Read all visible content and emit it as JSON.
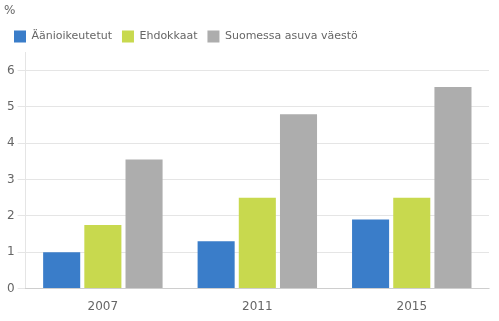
{
  "chart_data": {
    "type": "bar",
    "ylabel": "%",
    "categories": [
      "2007",
      "2011",
      "2015"
    ],
    "series": [
      {
        "name": "Äänioikeutetut",
        "color": "#3A7DC9",
        "values": [
          1.0,
          1.3,
          1.9
        ]
      },
      {
        "name": "Ehdokkaat",
        "color": "#C8D94E",
        "values": [
          1.75,
          2.5,
          2.5
        ]
      },
      {
        "name": "Suomessa asuva väestö",
        "color": "#ADADAD",
        "values": [
          3.55,
          4.8,
          5.55
        ]
      }
    ],
    "ylim": [
      0,
      6.5
    ],
    "yticks": [
      0,
      1,
      2,
      3,
      4,
      5,
      6
    ],
    "grid": true,
    "legend": "upper left"
  }
}
